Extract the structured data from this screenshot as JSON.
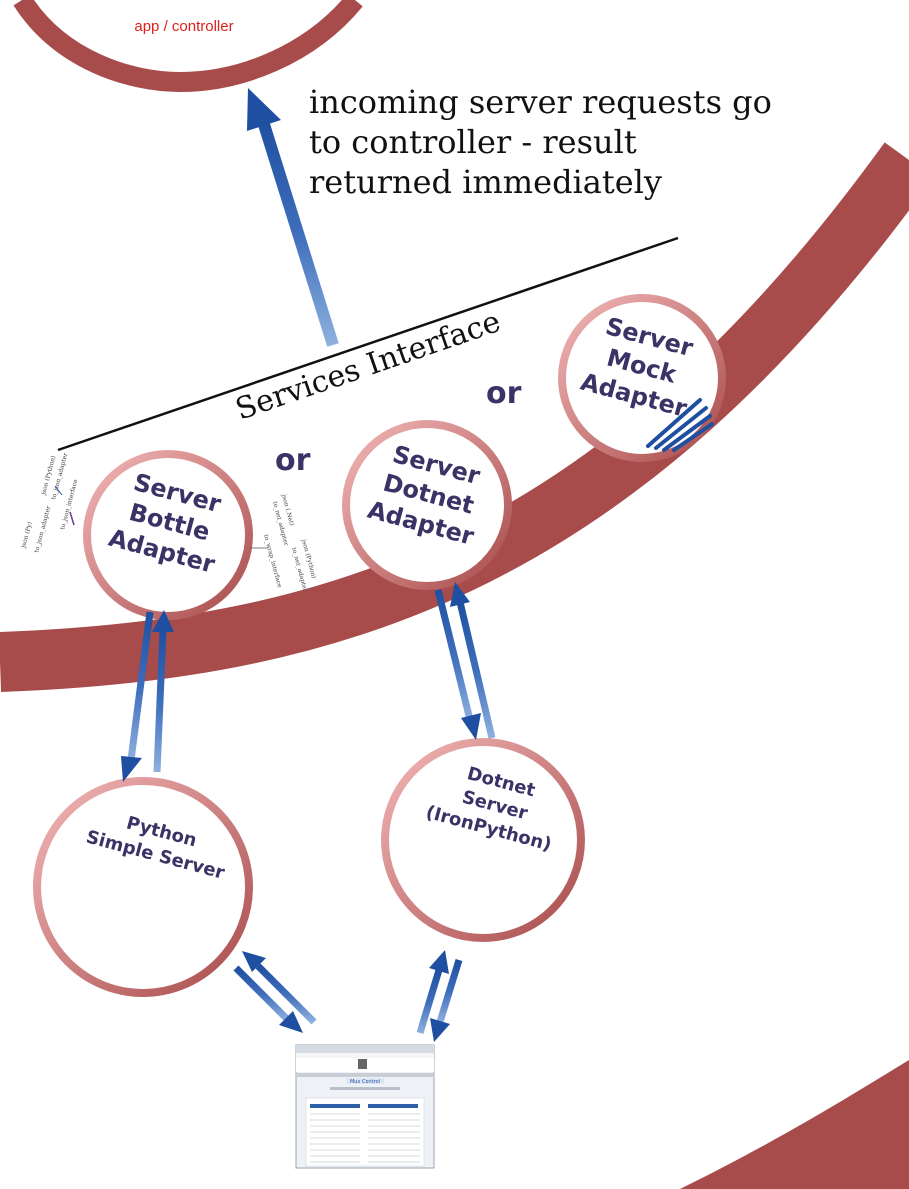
{
  "controller_label": "app / controller",
  "note_lines": [
    "incoming server requests go",
    "to controller - result",
    "returned immediately"
  ],
  "services_interface": "Services  Interface",
  "or_label": "or",
  "bottle_lines": [
    "Server",
    "Bottle",
    "Adapter"
  ],
  "dotnet_adapter_lines": [
    "Server",
    "Dotnet",
    "Adapter"
  ],
  "mock_lines": [
    "Server",
    "Mock",
    "Adapter"
  ],
  "python_server_lines": [
    "Python",
    "Simple Server"
  ],
  "dotnet_server_lines": [
    "Dotnet",
    "Server",
    "(IronPython)"
  ],
  "left_annotations": [
    "json (Py)",
    "to_json_adapter",
    "json (Python)",
    "to_json_adapter",
    "to_json_interface"
  ],
  "right_annotations": [
    "json (.Net)",
    "to_net_adapter",
    "json (Python)",
    "to_net_adapter",
    "to_wrap_interface"
  ],
  "browser_title": "Mux Control",
  "colors": {
    "ring": "#a84b4b",
    "node_ring": "#e8a0a0",
    "arrow": "#1f4fa0",
    "text": "#3b3266"
  }
}
